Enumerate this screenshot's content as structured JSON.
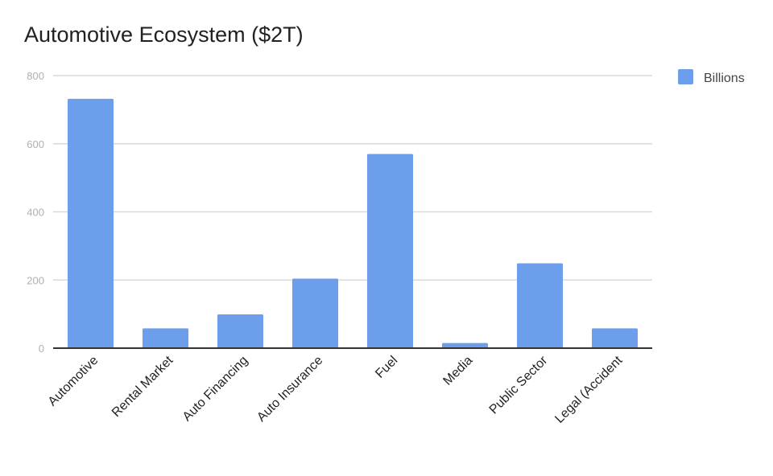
{
  "chart_data": {
    "type": "bar",
    "title": "Automotive Ecosystem ($2T)",
    "xlabel": "",
    "ylabel": "",
    "categories": [
      "Automotive",
      "Rental Market",
      "Auto Financing",
      "Auto Insurance",
      "Fuel",
      "Media",
      "Public Sector",
      "Legal (Accident"
    ],
    "series": [
      {
        "name": "Billions",
        "values": [
          732,
          58,
          99,
          204,
          570,
          15,
          249,
          58
        ],
        "color": "#6d9eeb"
      }
    ],
    "ylim": [
      0,
      800
    ],
    "yticks": [
      0,
      200,
      400,
      600,
      800
    ],
    "ytick_labels": [
      "0",
      "200",
      "400",
      "600",
      "800"
    ],
    "grid": true,
    "legend_position": "right",
    "colors": {
      "gridline": "#d9d9d9",
      "axis": "#333333"
    }
  }
}
